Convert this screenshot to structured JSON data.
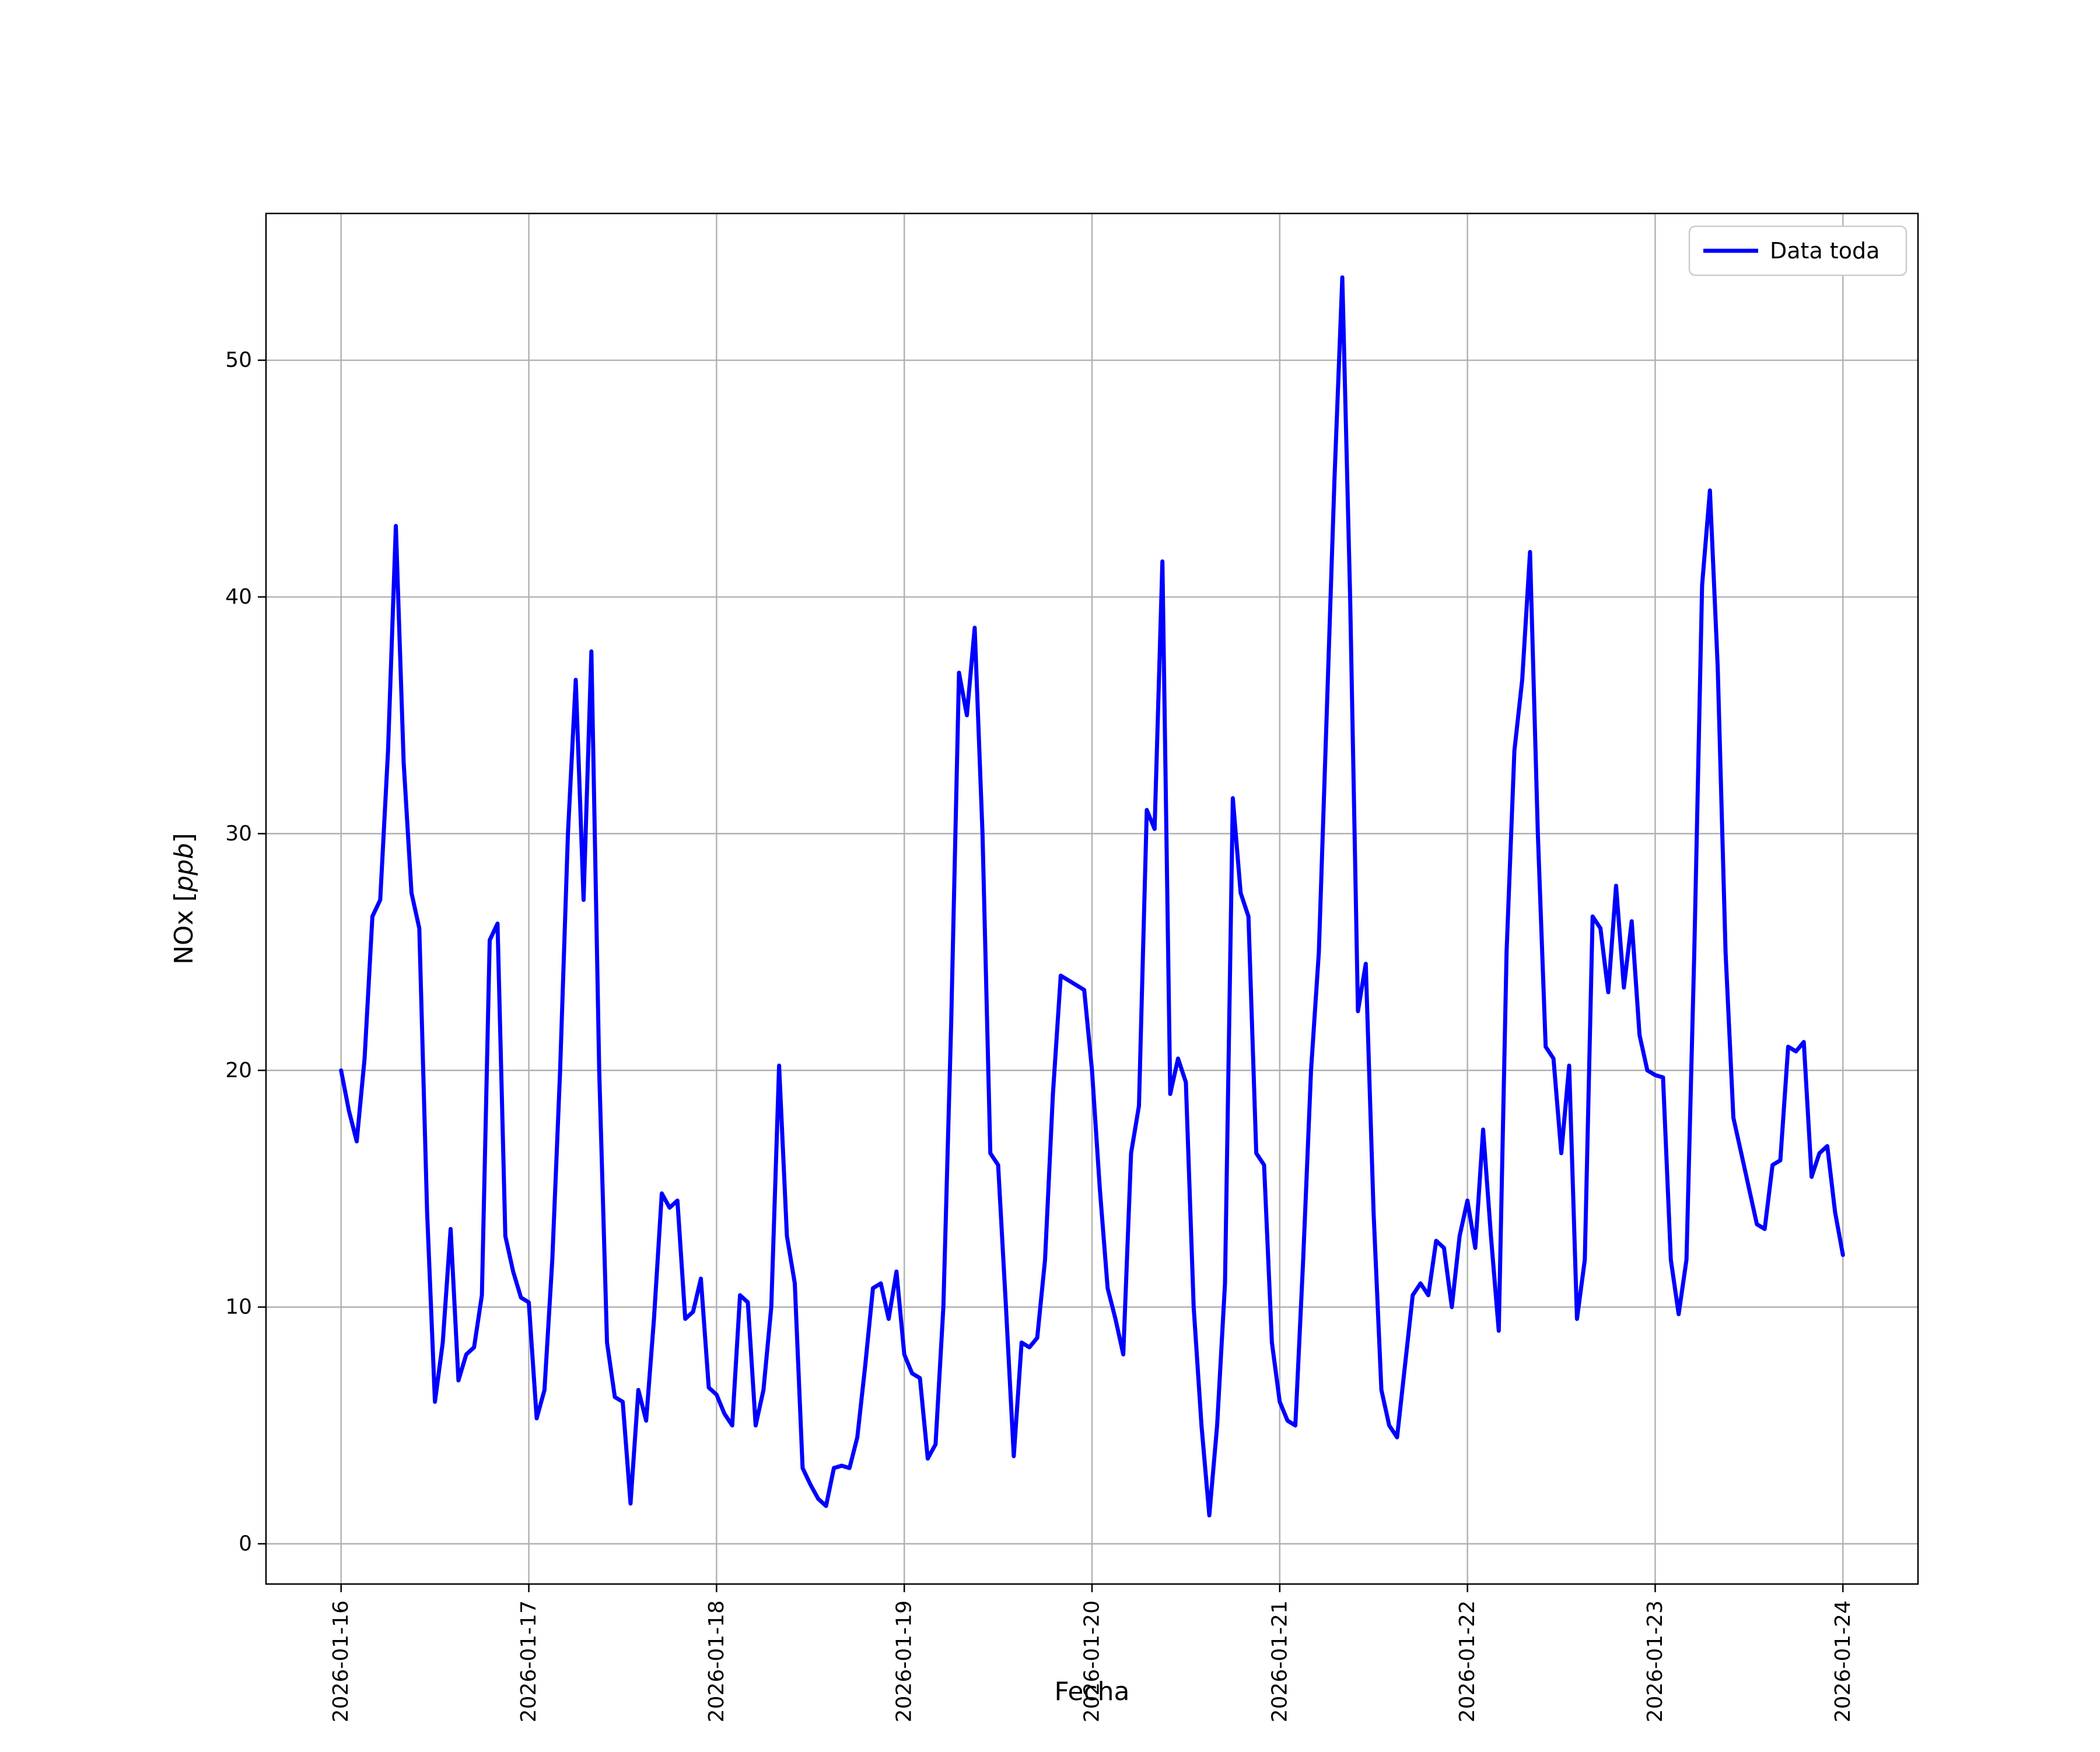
{
  "chart_data": {
    "type": "line",
    "title": "",
    "xlabel": "Fecha",
    "ylabel": "NOx [ppb]",
    "ylabel_parts": {
      "prefix": "NOx [",
      "math": "ppb",
      "suffix": "]"
    },
    "x_start": "2026-01-16T00:00",
    "x_step_hours": 1,
    "x_tick_labels": [
      "2026-01-16",
      "2026-01-17",
      "2026-01-18",
      "2026-01-19",
      "2026-01-20",
      "2026-01-21",
      "2026-01-22",
      "2026-01-23",
      "2026-01-24"
    ],
    "x_tick_hours": [
      0,
      24,
      48,
      72,
      96,
      120,
      144,
      168,
      192
    ],
    "yticks": [
      0,
      10,
      20,
      30,
      40,
      50
    ],
    "ylim": [
      -1.7,
      56.2
    ],
    "xlim_hours": [
      -9.6,
      201.6
    ],
    "grid": true,
    "grid_color": "#b0b0b0",
    "line_color": "#0000ff",
    "line_width": 7,
    "legend": {
      "position": "upper right",
      "entries": [
        {
          "label": "Data toda",
          "color": "#0000ff"
        }
      ]
    },
    "series": [
      {
        "name": "Data toda",
        "color": "#0000ff",
        "values": [
          20.0,
          18.3,
          17.0,
          20.5,
          26.5,
          27.2,
          33.5,
          43.0,
          33.0,
          27.5,
          26.0,
          14.0,
          6.0,
          8.5,
          13.3,
          6.9,
          8.0,
          8.3,
          10.5,
          25.5,
          26.2,
          13.0,
          11.5,
          10.4,
          10.2,
          5.3,
          6.5,
          12.0,
          20.0,
          30.0,
          36.5,
          27.2,
          37.7,
          20.0,
          8.5,
          6.2,
          6.0,
          1.7,
          6.5,
          5.2,
          9.5,
          14.8,
          14.2,
          14.5,
          9.5,
          9.8,
          11.2,
          6.6,
          6.3,
          5.5,
          5.0,
          10.5,
          10.2,
          5.0,
          6.5,
          10.0,
          20.2,
          13.0,
          11.0,
          3.2,
          2.5,
          1.9,
          1.6,
          3.2,
          3.3,
          3.2,
          4.5,
          7.5,
          10.8,
          11.0,
          9.5,
          11.5,
          8.0,
          7.2,
          7.0,
          3.6,
          4.2,
          10.0,
          22.0,
          36.8,
          35.0,
          38.7,
          30.0,
          16.5,
          16.0,
          10.0,
          3.7,
          8.5,
          8.3,
          8.7,
          12.0,
          19.0,
          24.0,
          23.8,
          23.6,
          23.4,
          20.0,
          15.0,
          10.8,
          9.5,
          8.0,
          16.5,
          18.5,
          31.0,
          30.2,
          41.5,
          19.0,
          20.5,
          19.5,
          10.0,
          5.0,
          1.2,
          5.0,
          11.0,
          31.5,
          27.5,
          26.5,
          16.5,
          16.0,
          8.5,
          6.0,
          5.2,
          5.0,
          12.0,
          20.0,
          25.0,
          35.0,
          45.0,
          53.5,
          40.0,
          22.5,
          24.5,
          14.0,
          6.5,
          5.0,
          4.5,
          7.5,
          10.5,
          11.0,
          10.5,
          12.8,
          12.5,
          10.0,
          13.0,
          14.5,
          12.5,
          17.5,
          13.0,
          9.0,
          25.0,
          33.5,
          36.5,
          41.9,
          30.0,
          21.0,
          20.5,
          16.5,
          20.2,
          9.5,
          12.0,
          26.5,
          26.0,
          23.3,
          27.8,
          23.5,
          26.3,
          21.5,
          20.0,
          19.8,
          19.7,
          12.0,
          9.7,
          12.0,
          25.0,
          40.5,
          44.5,
          37.0,
          25.0,
          18.0,
          16.5,
          15.0,
          13.5,
          13.3,
          16.0,
          16.2,
          21.0,
          20.8,
          21.2,
          15.5,
          16.5,
          16.8,
          14.0,
          12.2
        ]
      }
    ]
  }
}
